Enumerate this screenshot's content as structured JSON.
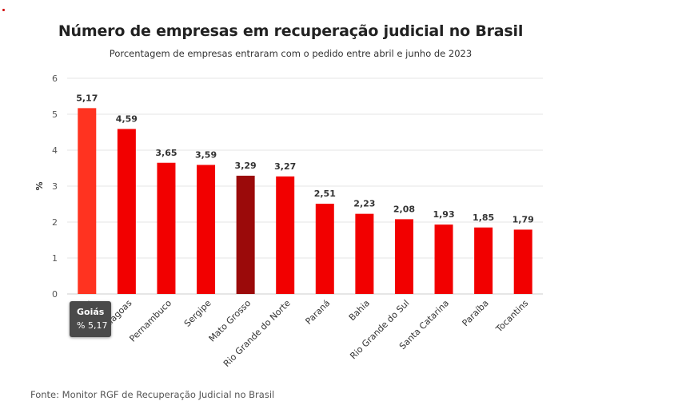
{
  "chart_data": {
    "type": "bar",
    "title": "Número de empresas em recuperação judicial no Brasil",
    "subtitle": "Porcentagem de empresas entraram com o pedido entre abril e junho de 2023",
    "ylabel": "%",
    "xlabel": "",
    "ylim": [
      0,
      6
    ],
    "yticks": [
      0,
      1,
      2,
      3,
      4,
      5,
      6
    ],
    "grid": true,
    "categories": [
      "Goiás",
      "Alagoas",
      "Pernambuco",
      "Sergipe",
      "Mato Grosso",
      "Rio Grande do Norte",
      "Paraná",
      "Bahia",
      "Rio Grande do Sul",
      "Santa Catarina",
      "Paraíba",
      "Tocantins"
    ],
    "values": [
      5.17,
      4.59,
      3.65,
      3.59,
      3.29,
      3.27,
      2.51,
      2.23,
      2.08,
      1.93,
      1.85,
      1.79
    ],
    "value_labels": [
      "5,17",
      "4,59",
      "3,65",
      "3,59",
      "3,29",
      "3,27",
      "2,51",
      "2,23",
      "2,08",
      "1,93",
      "1,85",
      "1,79"
    ],
    "colors": {
      "bar": "#f20000",
      "bar_hover": "#ff3320",
      "bar_highlight": "#9b0a0a"
    },
    "hovered_index": 0,
    "highlight_index": 4
  },
  "tooltip": {
    "name": "Goiás",
    "value": "% 5,17"
  },
  "source": "Fonte: Monitor RGF de Recuperação Judicial no Brasil"
}
